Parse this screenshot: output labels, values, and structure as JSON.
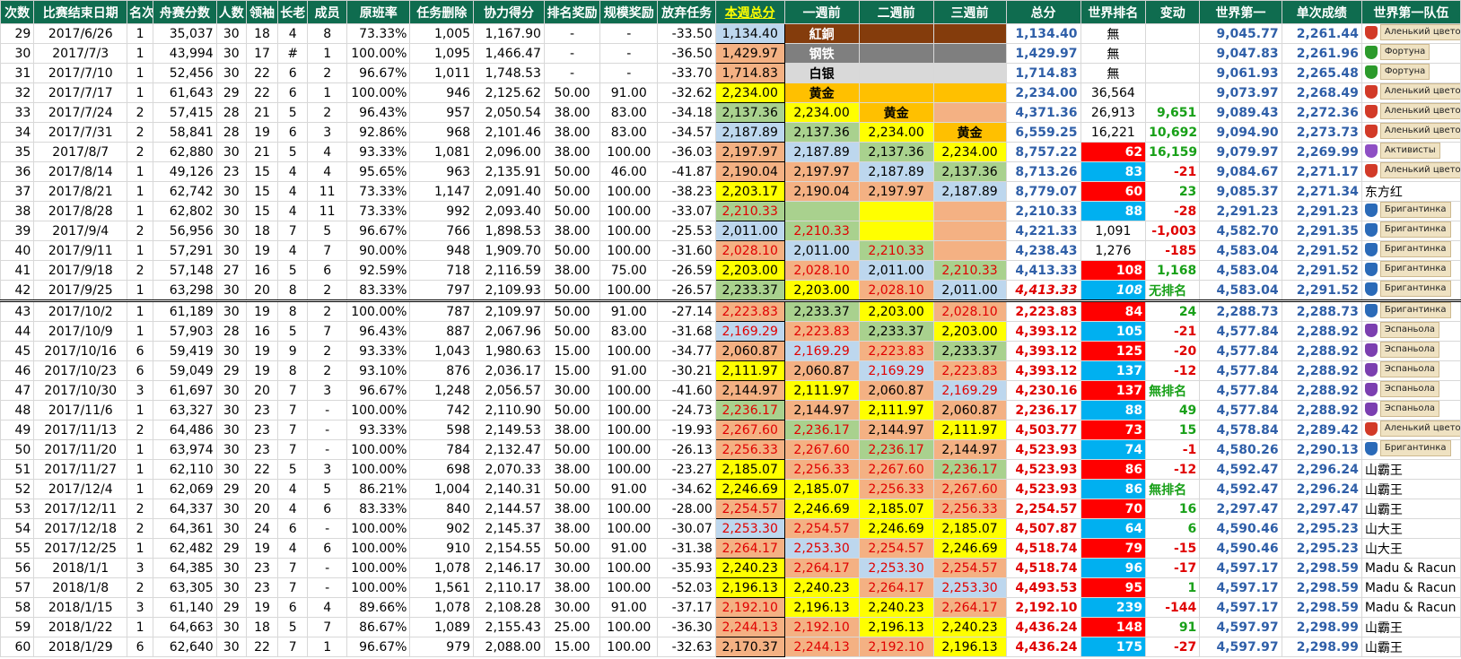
{
  "headers": [
    "次数",
    "比赛结束日期",
    "名次",
    "舟赛分数",
    "人数",
    "领袖",
    "长老",
    "成员",
    "原班率",
    "任务删除",
    "协力得分",
    "排名奖励",
    "规模奖励",
    "放弃任务",
    "本週总分",
    "一週前",
    "二週前",
    "三週前",
    "总分",
    "世界排名",
    "变动",
    "世界第一",
    "单次成绩",
    "世界第一队伍"
  ],
  "colors": {
    "header_bg": "#0f6c4f",
    "header_text": "#ffffff",
    "header_highlight": "#ffff00",
    "blue": "#2f5fa8",
    "red": "#e00000",
    "green": "#18a018",
    "gold": "#ffc000",
    "yellow": "#ffff00"
  },
  "rows": [
    {
      "c": [
        "29",
        "2017/6/26",
        "1",
        "35,037",
        "30",
        "18",
        "4",
        "8",
        "73.33%",
        "1,005",
        "1,167.90",
        "-",
        "-",
        "-33.50",
        "1,134.40",
        "紅銅",
        "",
        "",
        "1,134.40",
        "無",
        "",
        "9,045.77",
        "2,261.44"
      ],
      "team": {
        "name": "Аленький цветочек",
        "icon": "shield-rose-icon",
        "color": "#d23a28"
      }
    },
    {
      "c": [
        "30",
        "2017/7/3",
        "1",
        "43,994",
        "30",
        "17",
        "#",
        "1",
        "100.00%",
        "1,095",
        "1,466.47",
        "-",
        "-",
        "-36.50",
        "1,429.97",
        "钢铁",
        "",
        "",
        "1,429.97",
        "無",
        "",
        "9,047.83",
        "2,261.96"
      ],
      "team": {
        "name": "Фортуна",
        "icon": "shield-clover-icon",
        "color": "#2c9a2c"
      }
    },
    {
      "c": [
        "31",
        "2017/7/10",
        "1",
        "52,456",
        "30",
        "22",
        "6",
        "2",
        "96.67%",
        "1,011",
        "1,748.53",
        "-",
        "-",
        "-33.70",
        "1,714.83",
        "白银",
        "",
        "",
        "1,714.83",
        "無",
        "",
        "9,061.93",
        "2,265.48"
      ],
      "team": {
        "name": "Фортуна",
        "icon": "shield-clover-icon",
        "color": "#2c9a2c"
      }
    },
    {
      "c": [
        "32",
        "2017/7/17",
        "1",
        "61,643",
        "29",
        "22",
        "6",
        "1",
        "100.00%",
        "946",
        "2,125.62",
        "50.00",
        "91.00",
        "-32.62",
        "2,234.00",
        "黄金",
        "",
        "",
        "2,234.00",
        "36,564",
        "",
        "9,073.97",
        "2,268.49"
      ],
      "team": {
        "name": "Аленький цветочек",
        "icon": "shield-rose-icon",
        "color": "#d23a28"
      }
    },
    {
      "c": [
        "33",
        "2017/7/24",
        "2",
        "57,415",
        "28",
        "21",
        "5",
        "2",
        "96.43%",
        "957",
        "2,050.54",
        "38.00",
        "83.00",
        "-34.18",
        "2,137.36",
        "2,234.00",
        "黄金",
        "",
        "4,371.36",
        "26,913",
        "9,651",
        "9,089.43",
        "2,272.36"
      ],
      "team": {
        "name": "Аленький цветочек",
        "icon": "shield-rose-icon",
        "color": "#d23a28"
      }
    },
    {
      "c": [
        "34",
        "2017/7/31",
        "2",
        "58,841",
        "28",
        "19",
        "6",
        "3",
        "92.86%",
        "968",
        "2,101.46",
        "38.00",
        "83.00",
        "-34.57",
        "2,187.89",
        "2,137.36",
        "2,234.00",
        "黄金",
        "6,559.25",
        "16,221",
        "10,692",
        "9,094.90",
        "2,273.73"
      ],
      "team": {
        "name": "Аленький цветочек",
        "icon": "shield-rose-icon",
        "color": "#d23a28"
      }
    },
    {
      "c": [
        "35",
        "2017/8/7",
        "2",
        "62,880",
        "30",
        "21",
        "5",
        "4",
        "93.33%",
        "1,081",
        "2,096.00",
        "38.00",
        "100.00",
        "-36.03",
        "2,197.97",
        "2,187.89",
        "2,137.36",
        "2,234.00",
        "8,757.22",
        "62",
        "16,159",
        "9,079.97",
        "2,269.99"
      ],
      "team": {
        "name": "Активисты",
        "icon": "shield-violet-icon",
        "color": "#8e4fc4"
      }
    },
    {
      "c": [
        "36",
        "2017/8/14",
        "1",
        "49,126",
        "23",
        "15",
        "4",
        "4",
        "95.65%",
        "963",
        "2,135.91",
        "50.00",
        "46.00",
        "-41.87",
        "2,190.04",
        "2,197.97",
        "2,187.89",
        "2,137.36",
        "8,713.26",
        "83",
        "-21",
        "9,084.67",
        "2,271.17"
      ],
      "team": {
        "name": "Аленький цветочек",
        "icon": "shield-rose-icon",
        "color": "#d23a28"
      }
    },
    {
      "c": [
        "37",
        "2017/8/21",
        "1",
        "62,742",
        "30",
        "15",
        "4",
        "11",
        "73.33%",
        "1,147",
        "2,091.40",
        "50.00",
        "100.00",
        "-38.23",
        "2,203.17",
        "2,190.04",
        "2,197.97",
        "2,187.89",
        "8,779.07",
        "60",
        "23",
        "9,085.37",
        "2,271.34"
      ],
      "team": {
        "name": "东方红",
        "icon": "",
        "color": ""
      }
    },
    {
      "c": [
        "38",
        "2017/8/28",
        "1",
        "62,802",
        "30",
        "15",
        "4",
        "11",
        "73.33%",
        "992",
        "2,093.40",
        "50.00",
        "100.00",
        "-33.07",
        "2,210.33",
        "",
        "",
        "",
        "2,210.33",
        "88",
        "-28",
        "2,291.23",
        "2,291.23"
      ],
      "team": {
        "name": "Бригантинка",
        "icon": "shield-sail-icon",
        "color": "#2a6ab8"
      }
    },
    {
      "c": [
        "39",
        "2017/9/4",
        "2",
        "56,956",
        "30",
        "18",
        "7",
        "5",
        "96.67%",
        "766",
        "1,898.53",
        "38.00",
        "100.00",
        "-25.53",
        "2,011.00",
        "2,210.33",
        "",
        "",
        "4,221.33",
        "1,091",
        "-1,003",
        "4,582.70",
        "2,291.35"
      ],
      "team": {
        "name": "Бригантинка",
        "icon": "shield-sail-icon",
        "color": "#2a6ab8"
      }
    },
    {
      "c": [
        "40",
        "2017/9/11",
        "1",
        "57,291",
        "30",
        "19",
        "4",
        "7",
        "90.00%",
        "948",
        "1,909.70",
        "50.00",
        "100.00",
        "-31.60",
        "2,028.10",
        "2,011.00",
        "2,210.33",
        "",
        "4,238.43",
        "1,276",
        "-185",
        "4,583.04",
        "2,291.52"
      ],
      "team": {
        "name": "Бригантинка",
        "icon": "shield-sail-icon",
        "color": "#2a6ab8"
      }
    },
    {
      "c": [
        "41",
        "2017/9/18",
        "2",
        "57,148",
        "27",
        "16",
        "5",
        "6",
        "92.59%",
        "718",
        "2,116.59",
        "38.00",
        "75.00",
        "-26.59",
        "2,203.00",
        "2,028.10",
        "2,011.00",
        "2,210.33",
        "4,413.33",
        "108",
        "1,168",
        "4,583.04",
        "2,291.52"
      ],
      "team": {
        "name": "Бригантинка",
        "icon": "shield-sail-icon",
        "color": "#2a6ab8"
      }
    },
    {
      "c": [
        "42",
        "2017/9/25",
        "1",
        "63,298",
        "30",
        "20",
        "8",
        "2",
        "83.33%",
        "797",
        "2,109.93",
        "50.00",
        "100.00",
        "-26.57",
        "2,233.37",
        "2,203.00",
        "2,028.10",
        "2,011.00",
        "4,413.33",
        "108",
        "无排名",
        "4,583.04",
        "2,291.52"
      ],
      "team": {
        "name": "Бригантинка",
        "icon": "shield-sail-icon",
        "color": "#2a6ab8"
      }
    },
    {
      "c": [
        "43",
        "2017/10/2",
        "1",
        "61,189",
        "30",
        "19",
        "8",
        "2",
        "100.00%",
        "787",
        "2,109.97",
        "50.00",
        "91.00",
        "-27.14",
        "2,223.83",
        "2,233.37",
        "2,203.00",
        "2,028.10",
        "2,223.83",
        "84",
        "24",
        "2,288.73",
        "2,288.73"
      ],
      "team": {
        "name": "Бригантинка",
        "icon": "shield-sail-icon",
        "color": "#2a6ab8"
      }
    },
    {
      "c": [
        "44",
        "2017/10/9",
        "1",
        "57,903",
        "28",
        "16",
        "5",
        "7",
        "96.43%",
        "887",
        "2,067.96",
        "50.00",
        "83.00",
        "-31.68",
        "2,169.29",
        "2,223.83",
        "2,233.37",
        "2,203.00",
        "4,393.12",
        "105",
        "-21",
        "4,577.84",
        "2,288.92"
      ],
      "team": {
        "name": "Эспаньола",
        "icon": "shield-violet-icon",
        "color": "#7b3fb0"
      }
    },
    {
      "c": [
        "45",
        "2017/10/16",
        "6",
        "59,419",
        "30",
        "19",
        "9",
        "2",
        "93.33%",
        "1,043",
        "1,980.63",
        "15.00",
        "100.00",
        "-34.77",
        "2,060.87",
        "2,169.29",
        "2,223.83",
        "2,233.37",
        "4,393.12",
        "125",
        "-20",
        "4,577.84",
        "2,288.92"
      ],
      "team": {
        "name": "Эспаньола",
        "icon": "shield-violet-icon",
        "color": "#7b3fb0"
      }
    },
    {
      "c": [
        "46",
        "2017/10/23",
        "6",
        "59,049",
        "29",
        "19",
        "8",
        "2",
        "93.10%",
        "876",
        "2,036.17",
        "15.00",
        "91.00",
        "-30.21",
        "2,111.97",
        "2,060.87",
        "2,169.29",
        "2,223.83",
        "4,393.12",
        "137",
        "-12",
        "4,577.84",
        "2,288.92"
      ],
      "team": {
        "name": "Эспаньола",
        "icon": "shield-violet-icon",
        "color": "#7b3fb0"
      }
    },
    {
      "c": [
        "47",
        "2017/10/30",
        "3",
        "61,697",
        "30",
        "20",
        "7",
        "3",
        "96.67%",
        "1,248",
        "2,056.57",
        "30.00",
        "100.00",
        "-41.60",
        "2,144.97",
        "2,111.97",
        "2,060.87",
        "2,169.29",
        "4,230.16",
        "137",
        "無排名",
        "4,577.84",
        "2,288.92"
      ],
      "team": {
        "name": "Эспаньола",
        "icon": "shield-violet-icon",
        "color": "#7b3fb0"
      }
    },
    {
      "c": [
        "48",
        "2017/11/6",
        "1",
        "63,327",
        "30",
        "23",
        "7",
        "-",
        "100.00%",
        "742",
        "2,110.90",
        "50.00",
        "100.00",
        "-24.73",
        "2,236.17",
        "2,144.97",
        "2,111.97",
        "2,060.87",
        "2,236.17",
        "88",
        "49",
        "4,577.84",
        "2,288.92"
      ],
      "team": {
        "name": "Эспаньола",
        "icon": "shield-violet-icon",
        "color": "#7b3fb0"
      }
    },
    {
      "c": [
        "49",
        "2017/11/13",
        "2",
        "64,486",
        "30",
        "23",
        "7",
        "-",
        "93.33%",
        "598",
        "2,149.53",
        "38.00",
        "100.00",
        "-19.93",
        "2,267.60",
        "2,236.17",
        "2,144.97",
        "2,111.97",
        "4,503.77",
        "73",
        "15",
        "4,578.84",
        "2,289.42"
      ],
      "team": {
        "name": "Аленький цветочек",
        "icon": "shield-rose-icon",
        "color": "#d23a28"
      }
    },
    {
      "c": [
        "50",
        "2017/11/20",
        "1",
        "63,974",
        "30",
        "23",
        "7",
        "-",
        "100.00%",
        "784",
        "2,132.47",
        "50.00",
        "100.00",
        "-26.13",
        "2,256.33",
        "2,267.60",
        "2,236.17",
        "2,144.97",
        "4,523.93",
        "74",
        "-1",
        "4,580.26",
        "2,290.13"
      ],
      "team": {
        "name": "Бригантинка",
        "icon": "shield-sail-icon",
        "color": "#2a6ab8"
      }
    },
    {
      "c": [
        "51",
        "2017/11/27",
        "1",
        "62,110",
        "30",
        "22",
        "5",
        "3",
        "100.00%",
        "698",
        "2,070.33",
        "38.00",
        "100.00",
        "-23.27",
        "2,185.07",
        "2,256.33",
        "2,267.60",
        "2,236.17",
        "4,523.93",
        "86",
        "-12",
        "4,592.47",
        "2,296.24"
      ],
      "team": {
        "name": "山霸王",
        "icon": "",
        "color": ""
      }
    },
    {
      "c": [
        "52",
        "2017/12/4",
        "1",
        "62,069",
        "29",
        "20",
        "4",
        "5",
        "86.21%",
        "1,004",
        "2,140.31",
        "50.00",
        "91.00",
        "-34.62",
        "2,246.69",
        "2,185.07",
        "2,256.33",
        "2,267.60",
        "4,523.93",
        "86",
        "無排名",
        "4,592.47",
        "2,296.24"
      ],
      "team": {
        "name": "山霸王",
        "icon": "",
        "color": ""
      }
    },
    {
      "c": [
        "53",
        "2017/12/11",
        "2",
        "64,337",
        "30",
        "20",
        "4",
        "6",
        "83.33%",
        "840",
        "2,144.57",
        "38.00",
        "100.00",
        "-28.00",
        "2,254.57",
        "2,246.69",
        "2,185.07",
        "2,256.33",
        "2,254.57",
        "70",
        "16",
        "2,297.47",
        "2,297.47"
      ],
      "team": {
        "name": "山霸王",
        "icon": "",
        "color": ""
      }
    },
    {
      "c": [
        "54",
        "2017/12/18",
        "2",
        "64,361",
        "30",
        "24",
        "6",
        "-",
        "100.00%",
        "902",
        "2,145.37",
        "38.00",
        "100.00",
        "-30.07",
        "2,253.30",
        "2,254.57",
        "2,246.69",
        "2,185.07",
        "4,507.87",
        "64",
        "6",
        "4,590.46",
        "2,295.23"
      ],
      "team": {
        "name": "山大王",
        "icon": "",
        "color": ""
      }
    },
    {
      "c": [
        "55",
        "2017/12/25",
        "1",
        "62,482",
        "29",
        "19",
        "4",
        "6",
        "100.00%",
        "910",
        "2,154.55",
        "50.00",
        "91.00",
        "-31.38",
        "2,264.17",
        "2,253.30",
        "2,254.57",
        "2,246.69",
        "4,518.74",
        "79",
        "-15",
        "4,590.46",
        "2,295.23"
      ],
      "team": {
        "name": "山大王",
        "icon": "",
        "color": ""
      }
    },
    {
      "c": [
        "56",
        "2018/1/1",
        "3",
        "64,385",
        "30",
        "23",
        "7",
        "-",
        "100.00%",
        "1,078",
        "2,146.17",
        "30.00",
        "100.00",
        "-35.93",
        "2,240.23",
        "2,264.17",
        "2,253.30",
        "2,254.57",
        "4,518.74",
        "96",
        "-17",
        "4,597.17",
        "2,298.59"
      ],
      "team": {
        "name": "Madu & Racun",
        "icon": "",
        "color": ""
      }
    },
    {
      "c": [
        "57",
        "2018/1/8",
        "2",
        "63,305",
        "30",
        "23",
        "7",
        "-",
        "100.00%",
        "1,561",
        "2,110.17",
        "38.00",
        "100.00",
        "-52.03",
        "2,196.13",
        "2,240.23",
        "2,264.17",
        "2,253.30",
        "4,493.53",
        "95",
        "1",
        "4,597.17",
        "2,298.59"
      ],
      "team": {
        "name": "Madu & Racun",
        "icon": "",
        "color": ""
      }
    },
    {
      "c": [
        "58",
        "2018/1/15",
        "3",
        "61,140",
        "29",
        "19",
        "6",
        "4",
        "89.66%",
        "1,078",
        "2,108.28",
        "30.00",
        "91.00",
        "-37.17",
        "2,192.10",
        "2,196.13",
        "2,240.23",
        "2,264.17",
        "2,192.10",
        "239",
        "-144",
        "4,597.17",
        "2,298.59"
      ],
      "team": {
        "name": "Madu & Racun",
        "icon": "",
        "color": ""
      }
    },
    {
      "c": [
        "59",
        "2018/1/22",
        "1",
        "64,663",
        "30",
        "18",
        "5",
        "7",
        "86.67%",
        "1,089",
        "2,155.43",
        "25.00",
        "100.00",
        "-36.30",
        "2,244.13",
        "2,192.10",
        "2,196.13",
        "2,240.23",
        "4,436.24",
        "148",
        "91",
        "4,597.97",
        "2,298.99"
      ],
      "team": {
        "name": "山霸王",
        "icon": "",
        "color": ""
      }
    },
    {
      "c": [
        "60",
        "2018/1/29",
        "6",
        "62,640",
        "30",
        "22",
        "7",
        "1",
        "96.67%",
        "979",
        "2,088.00",
        "15.00",
        "100.00",
        "-32.63",
        "2,170.37",
        "2,244.13",
        "2,192.10",
        "2,196.13",
        "4,436.24",
        "175",
        "-27",
        "4,597.97",
        "2,298.99"
      ],
      "team": {
        "name": "山霸王",
        "icon": "",
        "color": ""
      }
    }
  ]
}
